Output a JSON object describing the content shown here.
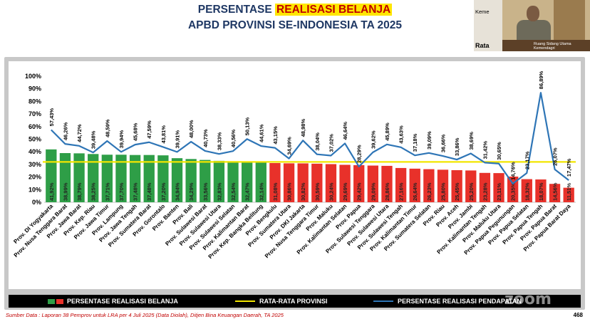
{
  "title": {
    "prefix": "PERSENTASE",
    "highlight": "REALISASI BELANJA",
    "line2": "APBD PROVINSI SE-INDONESIA TA 2025"
  },
  "video": {
    "name_label": "Keme",
    "room_label": "Ruang Sidang Utama Kemendagri",
    "corner_label": "Rata"
  },
  "legend": {
    "bar_label": "PERSENTASE REALISASI BELANJA",
    "avg_label": "RATA-RATA PROVINSI",
    "line_label": "PERSENTASE REALISASI PENDAPATAN"
  },
  "source": "Sumber Data : Laporan 38 Pemprov untuk LRA per 4 Juli 2025 (Data Diolah), Ditjen Bina Keuangan Daerah, TA 2025",
  "page_number": "468",
  "watermark": "zoom",
  "colors": {
    "above_avg_bar": "#2e9e47",
    "below_avg_bar": "#e8312a",
    "average_line": "#f2e600",
    "revenue_line": "#2e75b6",
    "title_text": "#1f3864",
    "title_highlight_bg": "#ffe600",
    "title_highlight_text": "#c00000"
  },
  "chart_data": {
    "type": "bar",
    "ylim": [
      0,
      100
    ],
    "yticks": [
      "0%",
      "10%",
      "20%",
      "30%",
      "40%",
      "50%",
      "60%",
      "70%",
      "80%",
      "90%",
      "100%"
    ],
    "average": 32,
    "categories": [
      "Prov. DI Yogyakarta",
      "Prov. Nusa Tenggara Barat",
      "Prov. Jawa Barat",
      "Prov. Kep. Riau",
      "Prov. Jawa Timur",
      "Prov. Lampung",
      "Prov. Jawa Tengah",
      "Prov. Sumatera Barat",
      "Prov. Gorontalo",
      "Prov. Banten",
      "Prov. Bali",
      "Prov. Sulawesi Barat",
      "Prov. Sulawesi Utara",
      "Prov. Sulawesi Selatan",
      "Prov. Kalimantan Barat",
      "Prov. Kep. Bangka Belitung",
      "Prov. Bengkulu",
      "Prov. Sumatera Utara",
      "Prov. DKI Jakarta",
      "Prov. Nusa Tenggara Timur",
      "Prov. Maluku",
      "Prov. Kalimantan Selatan",
      "Prov. Papua",
      "Prov. Sulawesi Tenggara",
      "Prov. Sulawesi Utara",
      "Prov. Sulawesi Tengah",
      "Prov. Kalimantan Timur",
      "Prov. Sumatera Selatan",
      "Prov. Riau",
      "Prov. Aceh",
      "Prov. Jambi",
      "Prov. Kalimantan Tengah",
      "Prov. Maluku Utara",
      "Prov. Papua Pegunungan",
      "Prov. Papua Selatan",
      "Prov. Papua Tengah",
      "Prov. Papua Barat",
      "Prov. Papua Barat Daya"
    ],
    "series": [
      {
        "name": "PERSENTASE REALISASI BELANJA",
        "values": [
          41.92,
          38.99,
          38.79,
          38.25,
          37.71,
          37.7,
          37.48,
          37.48,
          37.2,
          34.94,
          34.29,
          33.56,
          32.83,
          32.54,
          32.47,
          32.14,
          31.08,
          30.86,
          30.82,
          30.59,
          30.24,
          29.69,
          29.42,
          29.09,
          28.86,
          27.16,
          26.64,
          26.23,
          25.8,
          25.45,
          25.2,
          23.28,
          23.11,
          20.35,
          18.32,
          18.07,
          14.56,
          11.51
        ],
        "value_labels": [
          "41,92%",
          "38,99%",
          "38,79%",
          "38,25%",
          "37,71%",
          "37,70%",
          "37,48%",
          "37,48%",
          "37,20%",
          "34,94%",
          "34,29%",
          "33,56%",
          "32,83%",
          "32,54%",
          "32,47%",
          "32,14%",
          "31,08%",
          "30,86%",
          "30,82%",
          "30,59%",
          "30,24%",
          "29,69%",
          "29,42%",
          "29,09%",
          "28,86%",
          "27,16%",
          "26,64%",
          "26,23%",
          "25,80%",
          "25,45%",
          "25,20%",
          "23,28%",
          "23,11%",
          "20,35%",
          "18,32%",
          "18,07%",
          "14,56%",
          "11,51%"
        ]
      },
      {
        "name": "PERSENTASE REALISASI PENDAPATAN",
        "values": [
          57.43,
          46.26,
          44.72,
          39.48,
          48.59,
          39.94,
          45.68,
          47.59,
          43.81,
          39.91,
          48.0,
          40.73,
          38.33,
          40.56,
          50.13,
          44.61,
          43.15,
          34.69,
          48.98,
          38.04,
          37.02,
          46.64,
          28.29,
          39.62,
          45.89,
          43.63,
          37.18,
          39.09,
          36.66,
          33.86,
          38.69,
          31.42,
          30.65,
          14.76,
          23.17,
          86.89,
          26.07,
          17.47
        ],
        "value_labels": [
          "57,43%",
          "46,26%",
          "44,72%",
          "39,48%",
          "48,59%",
          "39,94%",
          "45,68%",
          "47,59%",
          "43,81%",
          "39,91%",
          "48,00%",
          "40,73%",
          "38,33%",
          "40,56%",
          "50,13%",
          "44,61%",
          "43,15%",
          "34,69%",
          "48,98%",
          "38,04%",
          "37,02%",
          "46,64%",
          "28,29%",
          "39,62%",
          "45,89%",
          "43,63%",
          "37,18%",
          "39,09%",
          "36,66%",
          "33,86%",
          "38,69%",
          "31,42%",
          "30,65%",
          "14,76%",
          "23,17%",
          "86,89%",
          "26,07%",
          "17,47%"
        ]
      }
    ],
    "legend_position": "bottom",
    "grid": false
  }
}
